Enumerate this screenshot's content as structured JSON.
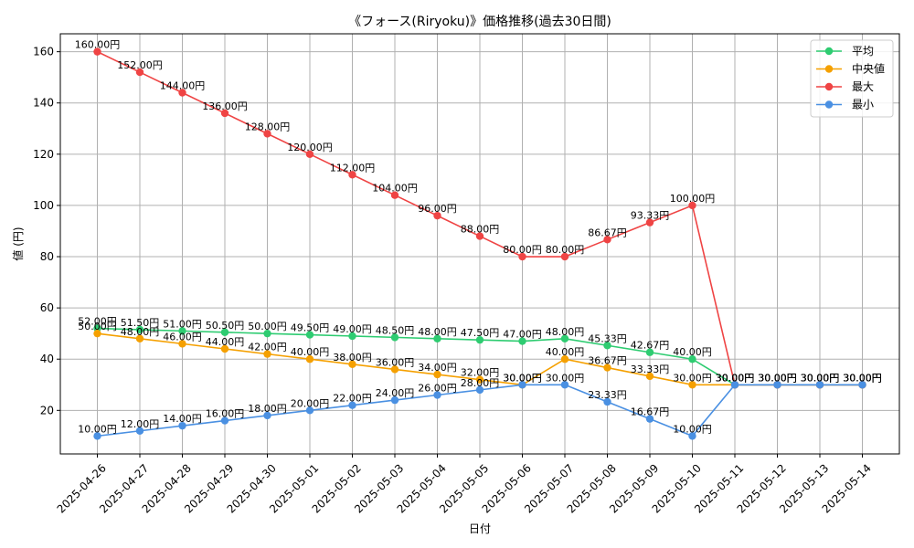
{
  "chart_data": {
    "type": "line",
    "title": "《フォース(Riryoku)》価格推移(過去30日間)",
    "xlabel": "日付",
    "ylabel": "値 (円)",
    "ylim": [
      3,
      167
    ],
    "yticks": [
      20,
      40,
      60,
      80,
      100,
      120,
      140,
      160
    ],
    "grid": true,
    "legend_position": "top-right",
    "value_suffix": "円",
    "categories": [
      "2025-04-26",
      "2025-04-27",
      "2025-04-28",
      "2025-04-29",
      "2025-04-30",
      "2025-05-01",
      "2025-05-02",
      "2025-05-03",
      "2025-05-04",
      "2025-05-05",
      "2025-05-06",
      "2025-05-07",
      "2025-05-08",
      "2025-05-09",
      "2025-05-10",
      "2025-05-11",
      "2025-05-12",
      "2025-05-13",
      "2025-05-14"
    ],
    "series": [
      {
        "name": "平均",
        "color": "#2ecc71",
        "values": [
          52.0,
          51.5,
          51.0,
          50.5,
          50.0,
          49.5,
          49.0,
          48.5,
          48.0,
          47.5,
          47.0,
          48.0,
          45.33,
          42.67,
          40.0,
          30.0,
          30.0,
          30.0,
          30.0
        ]
      },
      {
        "name": "中央値",
        "color": "#f5a000",
        "values": [
          50.0,
          48.0,
          46.0,
          44.0,
          42.0,
          40.0,
          38.0,
          36.0,
          34.0,
          32.0,
          30.0,
          40.0,
          36.67,
          33.33,
          30.0,
          30.0,
          30.0,
          30.0,
          30.0
        ]
      },
      {
        "name": "最大",
        "color": "#ef4444",
        "values": [
          160.0,
          152.0,
          144.0,
          136.0,
          128.0,
          120.0,
          112.0,
          104.0,
          96.0,
          88.0,
          80.0,
          80.0,
          86.67,
          93.33,
          100.0,
          30.0,
          30.0,
          30.0,
          30.0
        ]
      },
      {
        "name": "最小",
        "color": "#4a90e2",
        "values": [
          10.0,
          12.0,
          14.0,
          16.0,
          18.0,
          20.0,
          22.0,
          24.0,
          26.0,
          28.0,
          30.0,
          30.0,
          23.33,
          16.67,
          10.0,
          30.0,
          30.0,
          30.0,
          30.0
        ]
      }
    ]
  }
}
